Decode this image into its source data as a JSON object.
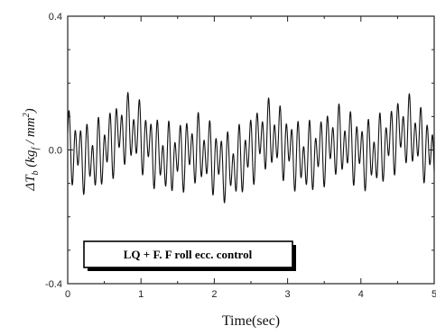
{
  "chart_data": {
    "type": "line",
    "title": "",
    "xlabel": "Time(sec)",
    "ylabel": {
      "delta": "Δ",
      "symbol": "T",
      "subscript": "b",
      "unit_open": " (",
      "unit_kg": "kg",
      "unit_kg_sub": "f",
      "unit_rest": " / mm",
      "unit_power": "2",
      "unit_close": ")"
    },
    "xlim": [
      0,
      5
    ],
    "ylim": [
      -0.4,
      0.4
    ],
    "x_ticks": [
      "0",
      "1",
      "2",
      "3",
      "4",
      "5"
    ],
    "y_ticks": [
      "0.4",
      "0.0",
      "-0.4"
    ],
    "grid": false,
    "legend": {
      "label": "LQ + F. F roll ecc. control",
      "placement": "bottom-left"
    },
    "series": [
      {
        "color": "#111111",
        "signal": {
          "t_start": 0,
          "t_end": 5,
          "components": [
            {
              "amp": 0.075,
              "freq_hz": 12.5,
              "phase": 0.0
            },
            {
              "amp": 0.04,
              "freq_hz": 7.3,
              "phase": 1.3
            },
            {
              "amp": 0.03,
              "freq_hz": 1.05,
              "phase": 2.4
            },
            {
              "amp": 0.02,
              "freq_hz": 0.55,
              "phase": 4.6
            },
            {
              "amp": 0.015,
              "freq_hz": 0.28,
              "phase": 0.9
            }
          ]
        }
      }
    ]
  }
}
